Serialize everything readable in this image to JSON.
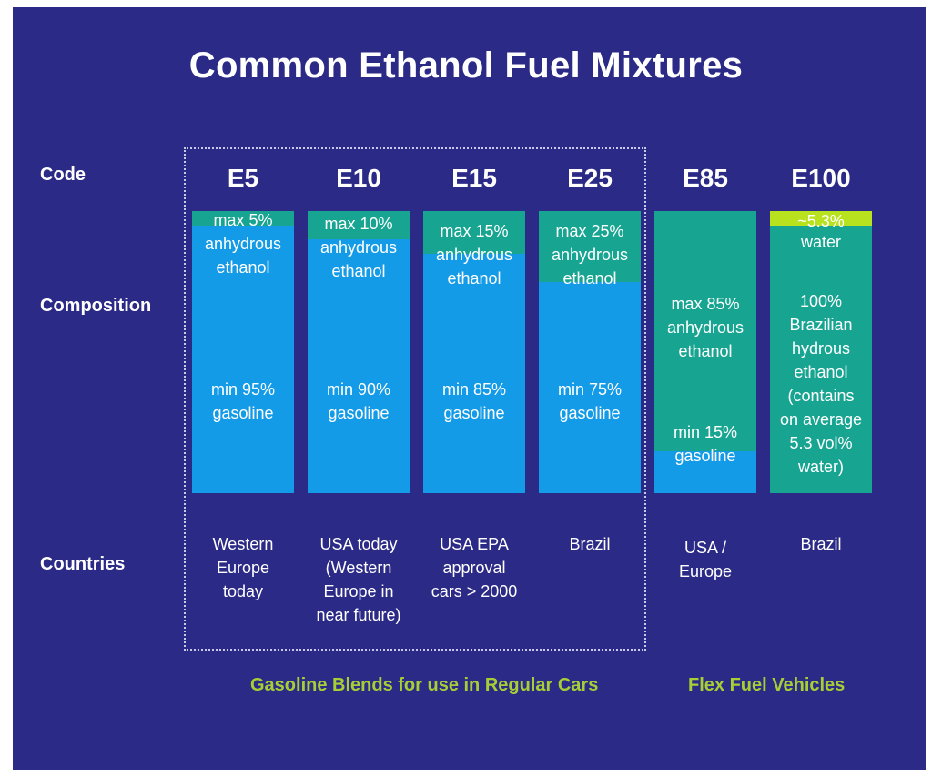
{
  "title": "Common Ethanol Fuel Mixtures",
  "row_labels": {
    "code": "Code",
    "composition": "Composition",
    "countries": "Countries"
  },
  "colors": {
    "background": "#2b2a86",
    "ethanol": "#17a592",
    "gasoline": "#139be8",
    "water": "#b7e21d",
    "group_label": "#a6cf36"
  },
  "columns": [
    {
      "code": "E5",
      "segments": [
        {
          "type": "ethanol",
          "share": 0.05,
          "text": "max 5%"
        },
        {
          "type": "gasoline",
          "share": 0.95,
          "text": "min 95%\ngasoline"
        }
      ],
      "ethanol_label": "anhydrous\nethanol",
      "country": "Western\nEurope\ntoday"
    },
    {
      "code": "E10",
      "segments": [
        {
          "type": "ethanol",
          "share": 0.1,
          "text": "max 10%"
        },
        {
          "type": "gasoline",
          "share": 0.9,
          "text": "min 90%\ngasoline"
        }
      ],
      "ethanol_label": "anhydrous\nethanol",
      "country": "USA today\n(Western\nEurope in\nnear future)"
    },
    {
      "code": "E15",
      "segments": [
        {
          "type": "ethanol",
          "share": 0.15,
          "text": "max 15%"
        },
        {
          "type": "gasoline",
          "share": 0.85,
          "text": "min 85%\ngasoline"
        }
      ],
      "ethanol_label": "anhydrous\nethanol",
      "country": "USA EPA\napproval\ncars > 2000"
    },
    {
      "code": "E25",
      "segments": [
        {
          "type": "ethanol",
          "share": 0.25,
          "text": "max 25%\nanhydrous\nethanol"
        },
        {
          "type": "gasoline",
          "share": 0.75,
          "text": "min 75%\ngasoline"
        }
      ],
      "country": "Brazil"
    },
    {
      "code": "E85",
      "segments": [
        {
          "type": "ethanol",
          "share": 0.85,
          "text": "max 85%\nanhydrous\nethanol"
        },
        {
          "type": "gasoline",
          "share": 0.15,
          "text": "min 15%\ngasoline"
        }
      ],
      "country": "USA /\nEurope"
    },
    {
      "code": "E100",
      "segments": [
        {
          "type": "water",
          "share": 0.053,
          "text": "~5.3%"
        },
        {
          "type": "ethanol",
          "share": 0.947,
          "text": "100%\nBrazilian\nhydrous\nethanol\n(contains\non average\n5.3 vol%\nwater)"
        }
      ],
      "water_label": "water",
      "country": "Brazil"
    }
  ],
  "groups": {
    "regular": "Gasoline Blends for use in Regular Cars",
    "flex": "Flex Fuel  Vehicles"
  }
}
